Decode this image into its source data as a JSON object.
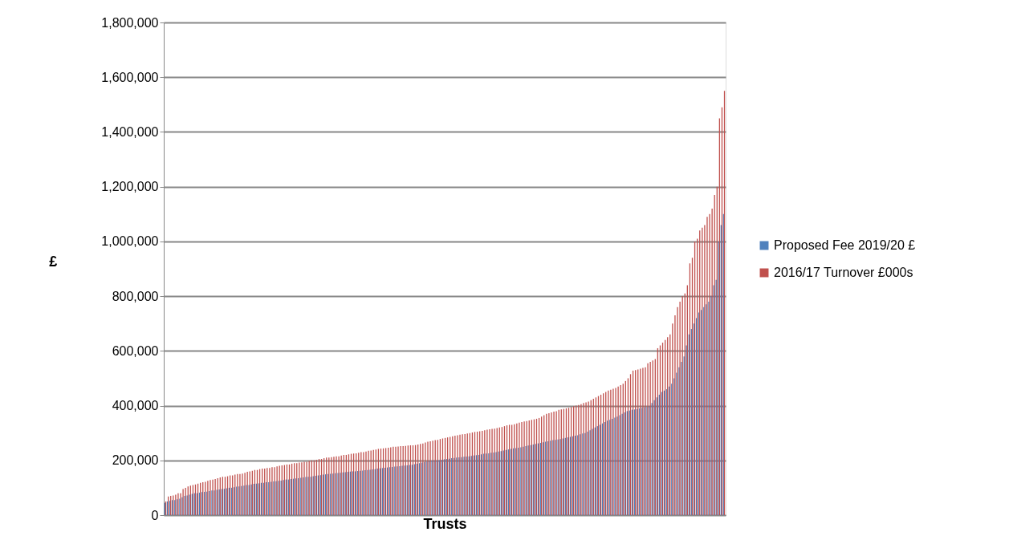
{
  "chart_data": {
    "type": "bar",
    "xlabel": "Trusts",
    "ylabel": "£",
    "categories": [
      null,
      null,
      null,
      null,
      null,
      null,
      null,
      null,
      null,
      null,
      null,
      null,
      null,
      null,
      null,
      null,
      null,
      null,
      null,
      null,
      null,
      null,
      null,
      null,
      null,
      null,
      null,
      null,
      null,
      null,
      null,
      null,
      null,
      null,
      null,
      null,
      null,
      null,
      null,
      null,
      null,
      null,
      null,
      null,
      null,
      null,
      null,
      null,
      null,
      null,
      null,
      null,
      null,
      null,
      null,
      null,
      null,
      null,
      null,
      null,
      null,
      null,
      null,
      null,
      null,
      null,
      null,
      null,
      null,
      null,
      null,
      null,
      null,
      null,
      null,
      null,
      null,
      null,
      null,
      null,
      null,
      null,
      null,
      null,
      null,
      null,
      null,
      null,
      null,
      null,
      null,
      null,
      null,
      null,
      null,
      null,
      null,
      null,
      null,
      null,
      null,
      null,
      null,
      null,
      null,
      null,
      null,
      null,
      null,
      null,
      null,
      null,
      null,
      null,
      null,
      null,
      null,
      null,
      null,
      null,
      null,
      null,
      null,
      null,
      null,
      null,
      null,
      null,
      null,
      null,
      null,
      null,
      null,
      null,
      null,
      null,
      null,
      null,
      null,
      null,
      null,
      null,
      null,
      null,
      null,
      null,
      null,
      null,
      null,
      null,
      null,
      null,
      null,
      null,
      null,
      null,
      null,
      null,
      null,
      null,
      null,
      null,
      null,
      null,
      null,
      null,
      null,
      null,
      null,
      null,
      null,
      null,
      null,
      null,
      null,
      null,
      null,
      null,
      null,
      null,
      null,
      null,
      null,
      null,
      null,
      null,
      null,
      null,
      null,
      null,
      null,
      null,
      null,
      null,
      null,
      null,
      null,
      null,
      null,
      null,
      null,
      null,
      null,
      null,
      null,
      null,
      null,
      null,
      null,
      null,
      null,
      null,
      null,
      null,
      null,
      null,
      null,
      null,
      null,
      null,
      null,
      null,
      null,
      null,
      null,
      null,
      null
    ],
    "series": [
      {
        "name": "Proposed Fee 2019/20 £",
        "color": "#4f81bd",
        "values": [
          45000,
          50000,
          52000,
          55000,
          55000,
          58000,
          60000,
          65000,
          70000,
          72000,
          75000,
          78000,
          80000,
          80000,
          82000,
          84000,
          85000,
          86000,
          88000,
          90000,
          90000,
          92000,
          94000,
          95000,
          96000,
          98000,
          100000,
          100000,
          102000,
          104000,
          105000,
          106000,
          108000,
          110000,
          110000,
          112000,
          114000,
          115000,
          116000,
          118000,
          118000,
          120000,
          120000,
          122000,
          123000,
          124000,
          125000,
          126000,
          128000,
          130000,
          130000,
          132000,
          133000,
          134000,
          135000,
          136000,
          138000,
          139000,
          140000,
          140000,
          142000,
          144000,
          145000,
          146000,
          148000,
          149000,
          150000,
          151000,
          152000,
          153000,
          154000,
          155000,
          156000,
          157000,
          158000,
          159000,
          160000,
          160000,
          161000,
          162000,
          163000,
          164000,
          165000,
          166000,
          167000,
          168000,
          170000,
          171000,
          172000,
          173000,
          174000,
          175000,
          176000,
          177000,
          178000,
          179000,
          180000,
          181000,
          182000,
          183000,
          184000,
          186000,
          188000,
          190000,
          192000,
          194000,
          196000,
          198000,
          199000,
          200000,
          200000,
          201000,
          202000,
          204000,
          205000,
          206000,
          208000,
          209000,
          210000,
          211000,
          212000,
          213000,
          214000,
          215000,
          216000,
          218000,
          219000,
          220000,
          222000,
          224000,
          225000,
          226000,
          228000,
          229000,
          230000,
          232000,
          234000,
          236000,
          238000,
          240000,
          242000,
          244000,
          245000,
          246000,
          248000,
          250000,
          252000,
          254000,
          256000,
          258000,
          260000,
          262000,
          264000,
          266000,
          268000,
          270000,
          272000,
          274000,
          275000,
          276000,
          278000,
          280000,
          282000,
          284000,
          286000,
          288000,
          290000,
          292000,
          295000,
          298000,
          300000,
          305000,
          310000,
          315000,
          320000,
          325000,
          330000,
          335000,
          340000,
          345000,
          348000,
          352000,
          356000,
          360000,
          365000,
          370000,
          375000,
          380000,
          382000,
          385000,
          386000,
          388000,
          390000,
          392000,
          394000,
          395000,
          398000,
          410000,
          420000,
          430000,
          440000,
          450000,
          455000,
          460000,
          470000,
          480000,
          500000,
          520000,
          540000,
          560000,
          580000,
          620000,
          660000,
          680000,
          700000,
          720000,
          740000,
          750000,
          760000,
          770000,
          780000,
          800000,
          840000,
          860000,
          1000000,
          1060000,
          1100000
        ]
      },
      {
        "name": "2016/17 Turnover £000s",
        "color": "#c0504d",
        "values": [
          50000,
          68000,
          70000,
          72000,
          75000,
          80000,
          80000,
          95000,
          100000,
          105000,
          108000,
          110000,
          112000,
          115000,
          118000,
          120000,
          122000,
          125000,
          128000,
          130000,
          132000,
          135000,
          138000,
          140000,
          140000,
          142000,
          145000,
          145000,
          148000,
          150000,
          150000,
          152000,
          155000,
          158000,
          160000,
          162000,
          165000,
          165000,
          168000,
          170000,
          170000,
          172000,
          172000,
          175000,
          175000,
          178000,
          180000,
          182000,
          183000,
          185000,
          185000,
          188000,
          190000,
          190000,
          192000,
          193000,
          195000,
          195000,
          198000,
          200000,
          200000,
          202000,
          205000,
          205000,
          208000,
          210000,
          210000,
          212000,
          213000,
          215000,
          215000,
          218000,
          220000,
          220000,
          222000,
          224000,
          225000,
          226000,
          228000,
          230000,
          230000,
          232000,
          235000,
          236000,
          238000,
          240000,
          242000,
          243000,
          244000,
          245000,
          246000,
          248000,
          250000,
          250000,
          251000,
          252000,
          252000,
          253000,
          254000,
          255000,
          255000,
          256000,
          258000,
          260000,
          262000,
          265000,
          268000,
          270000,
          272000,
          274000,
          275000,
          278000,
          280000,
          282000,
          284000,
          286000,
          288000,
          290000,
          292000,
          294000,
          295000,
          296000,
          298000,
          300000,
          302000,
          304000,
          305000,
          306000,
          308000,
          310000,
          312000,
          314000,
          315000,
          316000,
          318000,
          320000,
          322000,
          325000,
          328000,
          330000,
          330000,
          332000,
          335000,
          338000,
          340000,
          342000,
          344000,
          346000,
          348000,
          350000,
          352000,
          355000,
          360000,
          365000,
          370000,
          372000,
          375000,
          378000,
          380000,
          385000,
          386000,
          388000,
          390000,
          392000,
          395000,
          398000,
          400000,
          402000,
          405000,
          410000,
          412000,
          415000,
          420000,
          425000,
          430000,
          435000,
          440000,
          445000,
          450000,
          455000,
          458000,
          462000,
          465000,
          470000,
          475000,
          480000,
          490000,
          500000,
          515000,
          528000,
          530000,
          532000,
          535000,
          538000,
          540000,
          555000,
          560000,
          565000,
          570000,
          610000,
          620000,
          630000,
          640000,
          650000,
          660000,
          700000,
          730000,
          760000,
          780000,
          800000,
          810000,
          840000,
          920000,
          940000,
          1000000,
          1010000,
          1040000,
          1050000,
          1060000,
          1090000,
          1100000,
          1120000,
          1170000,
          1200000,
          1450000,
          1490000,
          1550000
        ]
      }
    ],
    "ylim": [
      0,
      1800000
    ],
    "yticks": [
      0,
      {
        "value": 200000,
        "label": "200,000"
      },
      {
        "value": 400000,
        "label": "400,000"
      },
      {
        "value": 600000,
        "label": "600,000"
      },
      {
        "value": 800000,
        "label": "800,000"
      },
      {
        "value": 1000000,
        "label": "1,000,000"
      },
      {
        "value": 1200000,
        "label": "1,200,000"
      },
      {
        "value": 1400000,
        "label": "1,400,000"
      },
      {
        "value": 1600000,
        "label": "1,600,000"
      },
      {
        "value": 1800000,
        "label": "1,800,000"
      }
    ],
    "grid": "y",
    "legend": "right",
    "tick_labels": "y"
  }
}
